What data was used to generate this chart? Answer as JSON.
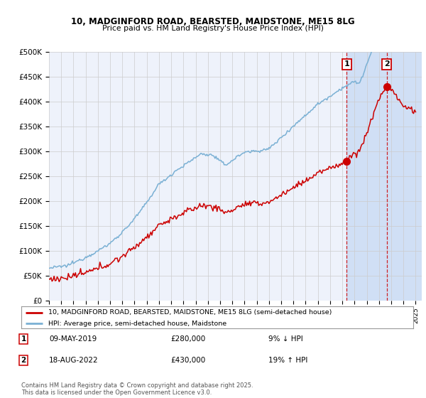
{
  "title1": "10, MADGINFORD ROAD, BEARSTED, MAIDSTONE, ME15 8LG",
  "title2": "Price paid vs. HM Land Registry's House Price Index (HPI)",
  "ylabel_ticks": [
    "£0",
    "£50K",
    "£100K",
    "£150K",
    "£200K",
    "£250K",
    "£300K",
    "£350K",
    "£400K",
    "£450K",
    "£500K"
  ],
  "ytick_vals": [
    0,
    50000,
    100000,
    150000,
    200000,
    250000,
    300000,
    350000,
    400000,
    450000,
    500000
  ],
  "xlim_min": 1995,
  "xlim_max": 2025.5,
  "ylim_min": 0,
  "ylim_max": 500000,
  "sale1_date": 2019.36,
  "sale1_price": 280000,
  "sale2_date": 2022.63,
  "sale2_price": 430000,
  "legend1": "10, MADGINFORD ROAD, BEARSTED, MAIDSTONE, ME15 8LG (semi-detached house)",
  "legend2": "HPI: Average price, semi-detached house, Maidstone",
  "note1_label": "1",
  "note1_date": "09-MAY-2019",
  "note1_price": "£280,000",
  "note1_hpi": "9% ↓ HPI",
  "note2_label": "2",
  "note2_date": "18-AUG-2022",
  "note2_price": "£430,000",
  "note2_hpi": "19% ↑ HPI",
  "footnote": "Contains HM Land Registry data © Crown copyright and database right 2025.\nThis data is licensed under the Open Government Licence v3.0.",
  "line_color_red": "#cc0000",
  "line_color_blue": "#7ab0d4",
  "grid_color": "#cccccc",
  "bg_color": "#eef2fb",
  "highlight_bg": "#d0dff5"
}
